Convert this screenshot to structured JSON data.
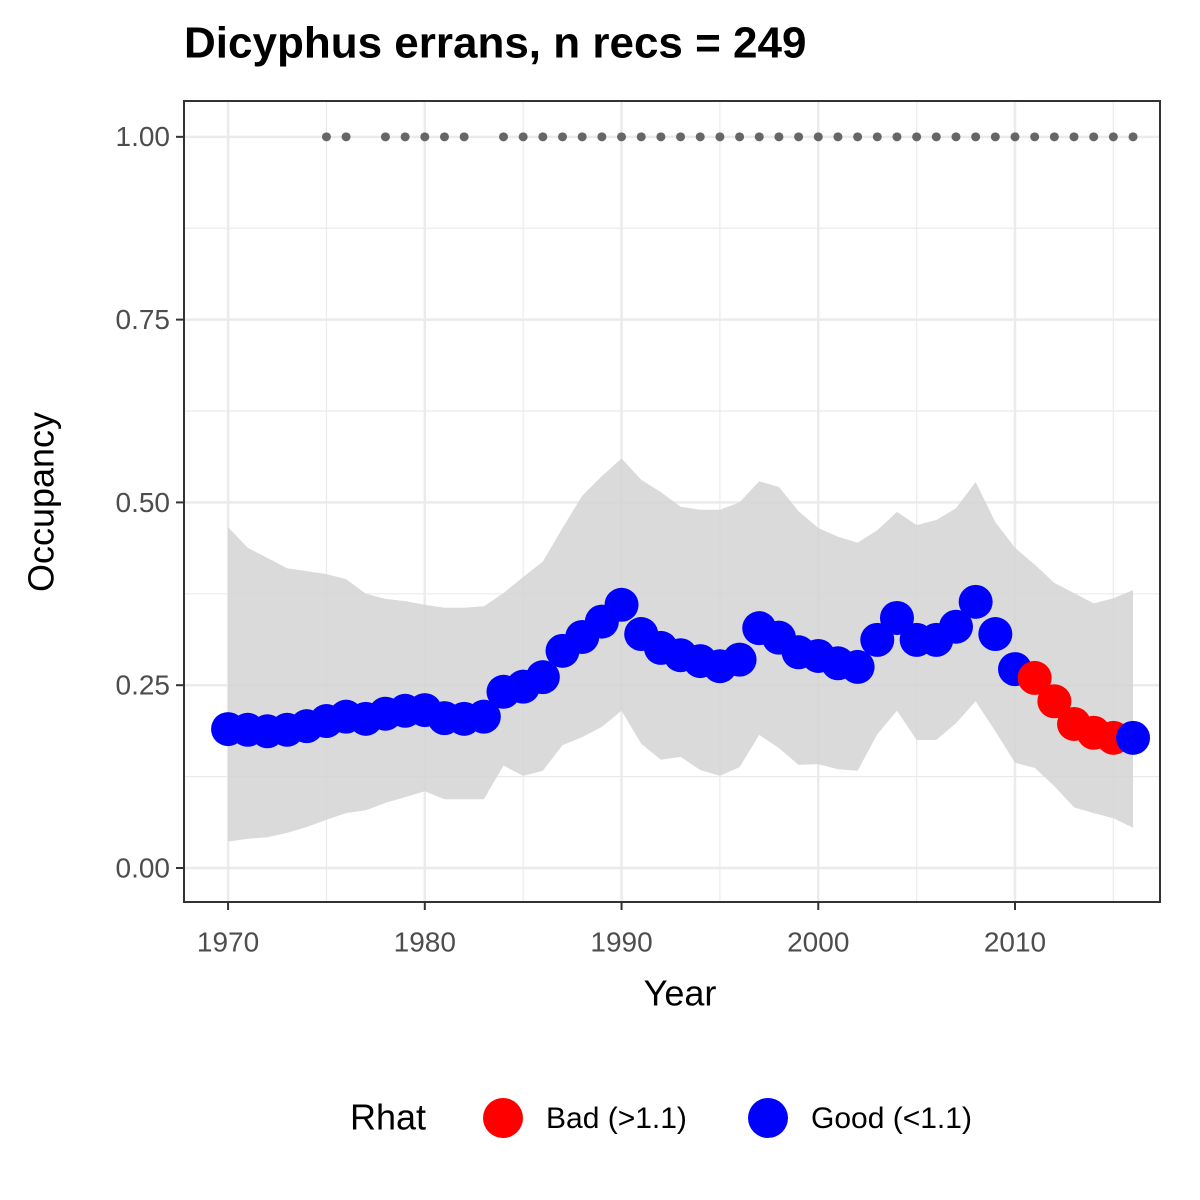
{
  "chart_data": {
    "type": "occupancy",
    "title": "Dicyphus errans, n recs = 249",
    "x_label": "Year",
    "y_label": "Occupancy",
    "legend_title": "Rhat",
    "x": [
      1970,
      1971,
      1972,
      1973,
      1974,
      1975,
      1976,
      1977,
      1978,
      1979,
      1980,
      1981,
      1982,
      1983,
      1984,
      1985,
      1986,
      1987,
      1988,
      1989,
      1990,
      1991,
      1992,
      1993,
      1994,
      1995,
      1996,
      1997,
      1998,
      1999,
      2000,
      2001,
      2002,
      2003,
      2004,
      2005,
      2006,
      2007,
      2008,
      2009,
      2010,
      2011,
      2012,
      2013,
      2014,
      2015,
      2016
    ],
    "series": [
      {
        "name": "Bad (>1.1)",
        "color": "#ff0000",
        "values": [
          null,
          null,
          null,
          null,
          null,
          null,
          null,
          null,
          null,
          null,
          null,
          null,
          null,
          null,
          null,
          null,
          null,
          null,
          null,
          null,
          null,
          null,
          null,
          null,
          null,
          null,
          null,
          null,
          null,
          null,
          null,
          null,
          null,
          null,
          null,
          null,
          null,
          null,
          null,
          null,
          null,
          0.26,
          0.228,
          0.197,
          0.185,
          0.178,
          null
        ]
      },
      {
        "name": "Good (<1.1)",
        "color": "#0000ff",
        "values": [
          0.19,
          0.189,
          0.187,
          0.189,
          0.194,
          0.201,
          0.207,
          0.204,
          0.211,
          0.215,
          0.216,
          0.205,
          0.204,
          0.207,
          0.241,
          0.248,
          0.261,
          0.297,
          0.316,
          0.337,
          0.36,
          0.32,
          0.301,
          0.291,
          0.283,
          0.276,
          0.285,
          0.328,
          0.315,
          0.295,
          0.29,
          0.28,
          0.275,
          0.312,
          0.342,
          0.312,
          0.312,
          0.33,
          0.364,
          0.32,
          0.272,
          null,
          null,
          null,
          null,
          null,
          0.178
        ]
      }
    ],
    "band": {
      "color": "#d3d3d3",
      "lower": [
        0.036,
        0.04,
        0.042,
        0.048,
        0.056,
        0.066,
        0.075,
        0.079,
        0.089,
        0.097,
        0.105,
        0.094,
        0.094,
        0.094,
        0.14,
        0.126,
        0.133,
        0.168,
        0.179,
        0.193,
        0.215,
        0.17,
        0.148,
        0.152,
        0.134,
        0.126,
        0.138,
        0.182,
        0.164,
        0.141,
        0.142,
        0.135,
        0.133,
        0.183,
        0.215,
        0.175,
        0.175,
        0.198,
        0.228,
        0.187,
        0.144,
        0.137,
        0.112,
        0.083,
        0.075,
        0.068,
        0.055
      ],
      "upper": [
        0.466,
        0.438,
        0.424,
        0.41,
        0.406,
        0.402,
        0.395,
        0.375,
        0.368,
        0.365,
        0.36,
        0.356,
        0.356,
        0.358,
        0.376,
        0.398,
        0.419,
        0.465,
        0.509,
        0.536,
        0.56,
        0.531,
        0.514,
        0.494,
        0.49,
        0.49,
        0.5,
        0.529,
        0.521,
        0.488,
        0.465,
        0.453,
        0.445,
        0.462,
        0.487,
        0.469,
        0.476,
        0.492,
        0.528,
        0.473,
        0.438,
        0.415,
        0.39,
        0.376,
        0.362,
        0.369,
        0.38
      ]
    },
    "records": {
      "color": "#666666",
      "x": [
        1975,
        1976,
        1978,
        1979,
        1980,
        1981,
        1982,
        1984,
        1985,
        1986,
        1987,
        1988,
        1989,
        1990,
        1991,
        1992,
        1993,
        1994,
        1995,
        1996,
        1997,
        1998,
        1999,
        2000,
        2001,
        2002,
        2003,
        2004,
        2005,
        2006,
        2007,
        2008,
        2009,
        2010,
        2011,
        2012,
        2013,
        2014,
        2015,
        2016
      ],
      "values": [
        1,
        1,
        1,
        1,
        1,
        1,
        1,
        1,
        1,
        1,
        1,
        1,
        1,
        1,
        1,
        1,
        1,
        1,
        1,
        1,
        1,
        1,
        1,
        1,
        1,
        1,
        1,
        1,
        1,
        1,
        1,
        1,
        1,
        1,
        1,
        1,
        1,
        1,
        1,
        1
      ]
    },
    "xlim": [
      1967.76,
      2017.37
    ],
    "ylim": [
      -0.0465,
      1.049
    ],
    "xticks": [
      1970,
      1980,
      1990,
      2000,
      2010
    ],
    "yticks": [
      {
        "value": 0,
        "label": "0.00"
      },
      {
        "value": 0.25,
        "label": "0.25"
      },
      {
        "value": 0.5,
        "label": "0.50"
      },
      {
        "value": 0.75,
        "label": "0.75"
      },
      {
        "value": 1,
        "label": "1.00"
      }
    ],
    "x_minor_ticks": [
      1975,
      1985,
      1995,
      2005,
      2015
    ],
    "y_minor_ticks": [
      0.125,
      0.375,
      0.625,
      0.875
    ],
    "grid": true
  }
}
